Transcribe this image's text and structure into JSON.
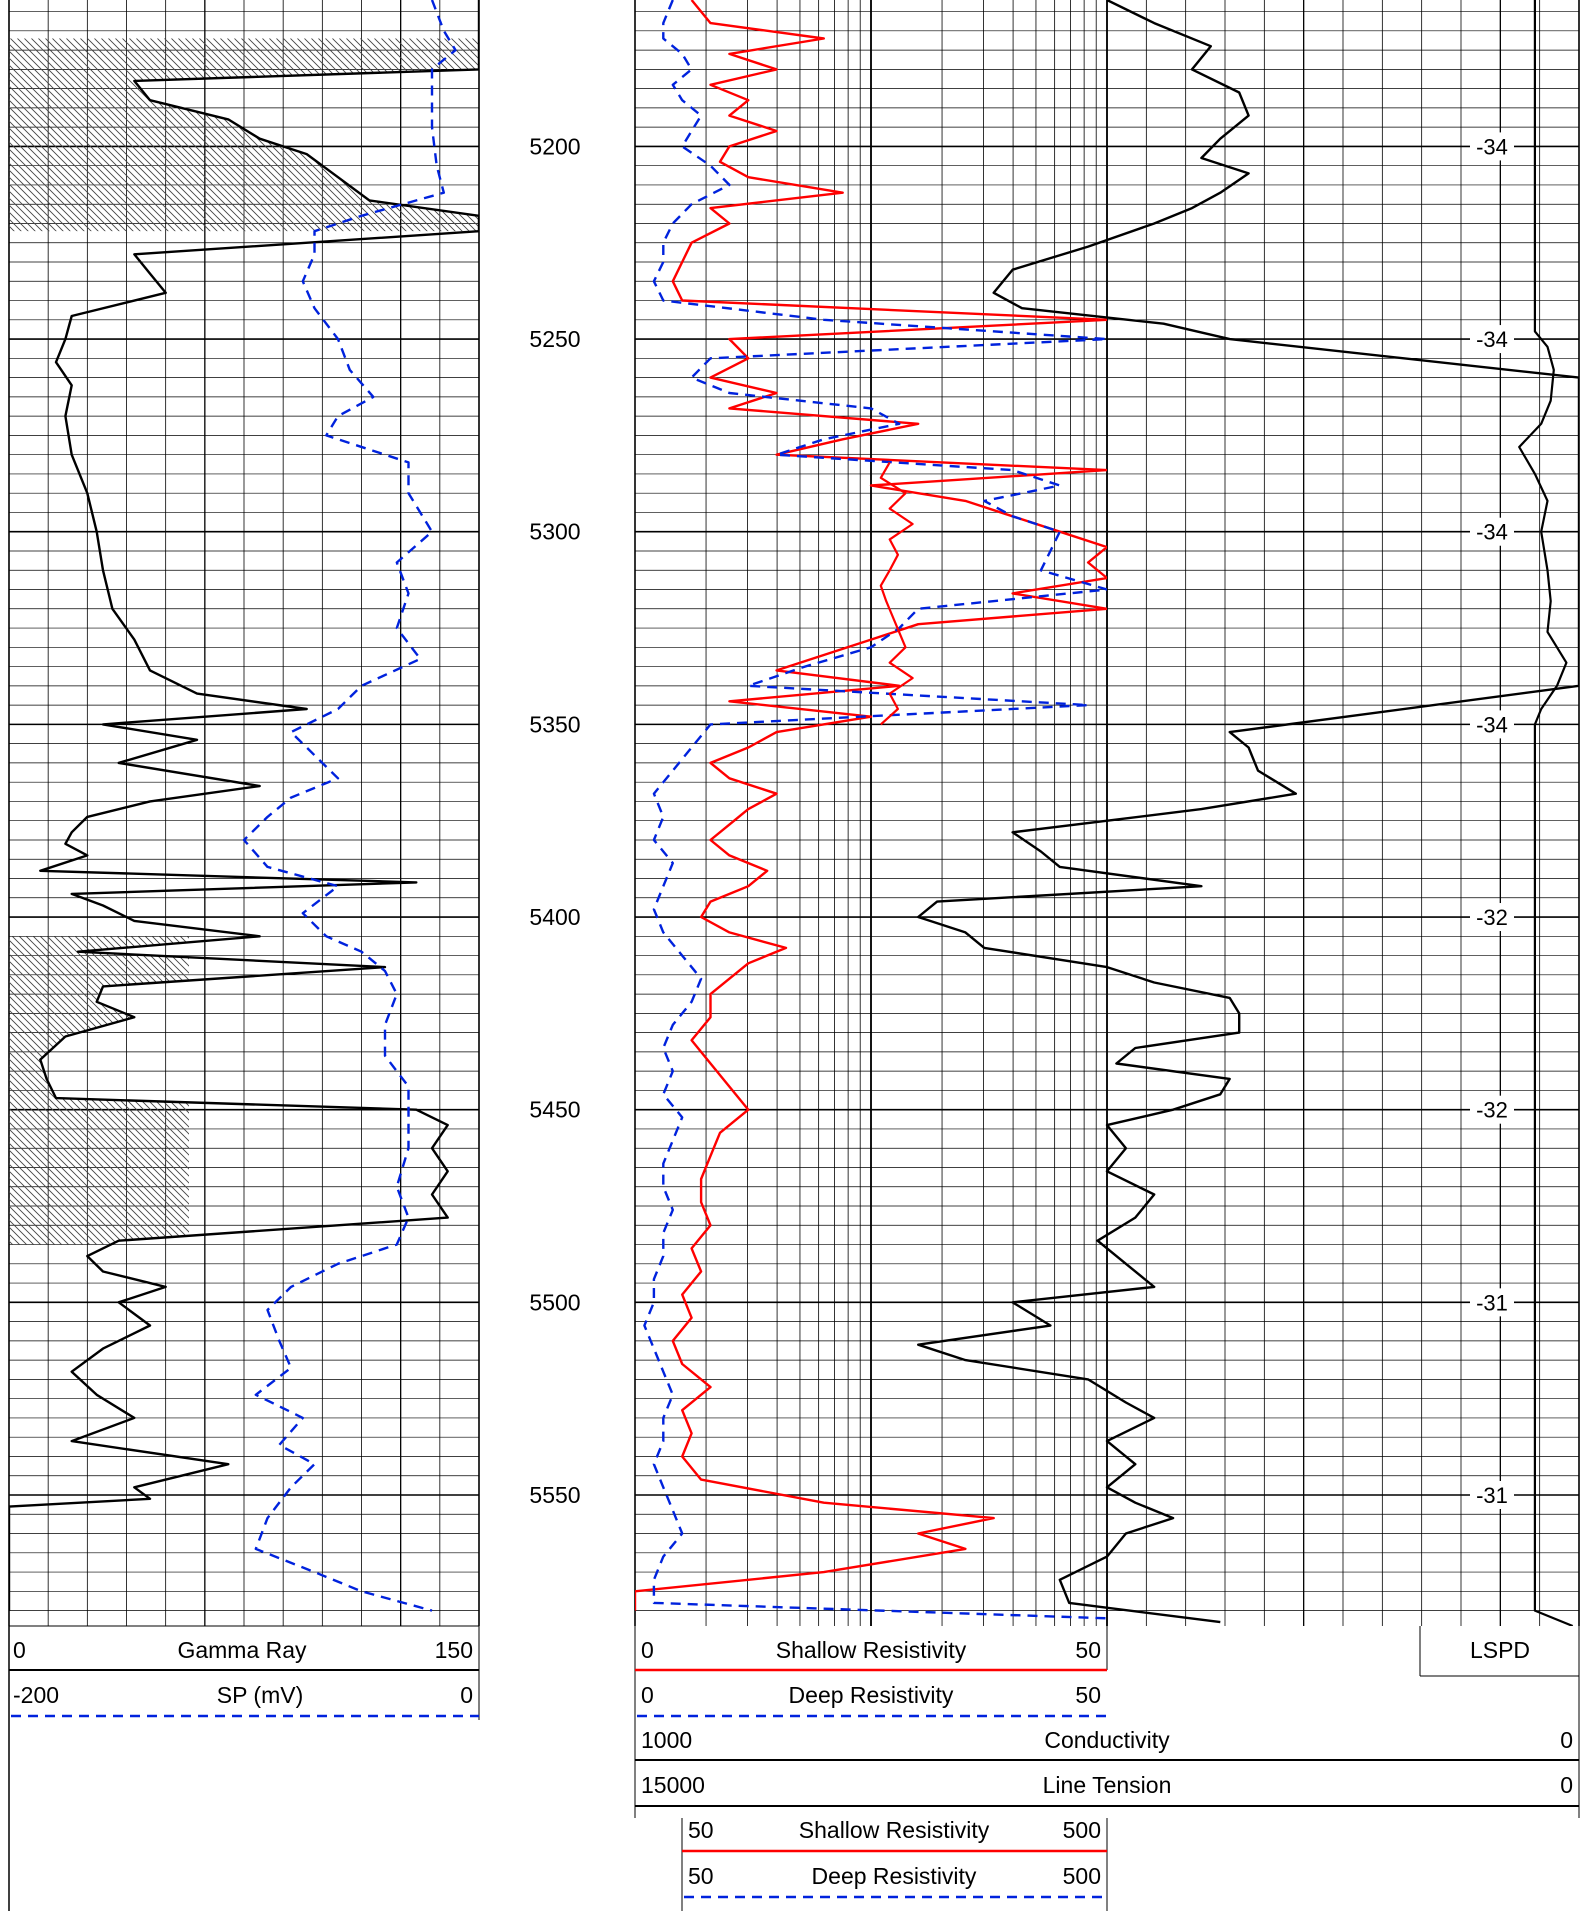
{
  "chart_data": {
    "type": "line",
    "title": "",
    "depth_axis": {
      "ticks": [
        5200,
        5250,
        5300,
        5350,
        5400,
        5450,
        5500,
        5550
      ],
      "range": [
        5162,
        5584
      ]
    },
    "lspd_labels": [
      {
        "depth": 5200,
        "text": "-34"
      },
      {
        "depth": 5250,
        "text": "-34"
      },
      {
        "depth": 5300,
        "text": "-34"
      },
      {
        "depth": 5350,
        "text": "-34"
      },
      {
        "depth": 5400,
        "text": "-32"
      },
      {
        "depth": 5450,
        "text": "-32"
      },
      {
        "depth": 5500,
        "text": "-31"
      },
      {
        "depth": 5550,
        "text": "-31"
      }
    ],
    "tracks": [
      {
        "name": "track-1",
        "scale": "linear",
        "grid": true
      },
      {
        "name": "track-2",
        "scale": "log",
        "grid": true,
        "decades": [
          [
            5,
            50
          ],
          [
            50,
            500
          ]
        ]
      },
      {
        "name": "track-3",
        "scale": "linear",
        "grid": true
      }
    ],
    "curves": {
      "gamma_ray": {
        "color": "#000000",
        "dash": "solid",
        "range": [
          0,
          150
        ],
        "depth": [
          5162,
          5170,
          5175,
          5180,
          5183,
          5188,
          5193,
          5198,
          5202,
          5208,
          5214,
          5218,
          5222,
          5228,
          5233,
          5238,
          5244,
          5250,
          5256,
          5262,
          5270,
          5280,
          5290,
          5300,
          5310,
          5320,
          5328,
          5336,
          5342,
          5346,
          5350,
          5354,
          5360,
          5366,
          5370,
          5374,
          5378,
          5381,
          5384,
          5388,
          5391,
          5394,
          5397,
          5401,
          5405,
          5409,
          5413,
          5418,
          5422,
          5426,
          5431,
          5437,
          5442,
          5447,
          5450,
          5454,
          5460,
          5466,
          5472,
          5478,
          5484,
          5488,
          5492,
          5496,
          5500,
          5506,
          5512,
          5518,
          5524,
          5530,
          5536,
          5542,
          5548,
          5551,
          5553,
          5560,
          5570,
          5580
        ],
        "value": [
          150,
          150,
          150,
          150,
          40,
          45,
          70,
          80,
          95,
          105,
          115,
          150,
          150,
          40,
          45,
          50,
          20,
          18,
          15,
          20,
          18,
          20,
          25,
          28,
          30,
          33,
          40,
          45,
          60,
          95,
          30,
          60,
          35,
          80,
          45,
          25,
          20,
          18,
          25,
          10,
          130,
          20,
          30,
          40,
          80,
          22,
          120,
          30,
          28,
          40,
          18,
          10,
          12,
          15,
          130,
          140,
          135,
          140,
          135,
          140,
          35,
          25,
          30,
          50,
          35,
          45,
          30,
          20,
          28,
          40,
          20,
          70,
          40,
          45,
          0,
          0,
          0,
          0
        ]
      },
      "sp": {
        "color": "#0022dd",
        "dash": "10 7",
        "range": [
          -200,
          0
        ],
        "depth": [
          5162,
          5170,
          5175,
          5180,
          5185,
          5195,
          5205,
          5212,
          5218,
          5222,
          5228,
          5235,
          5242,
          5250,
          5258,
          5265,
          5270,
          5275,
          5282,
          5290,
          5300,
          5308,
          5316,
          5325,
          5333,
          5340,
          5346,
          5352,
          5358,
          5364,
          5369,
          5374,
          5380,
          5387,
          5392,
          5399,
          5405,
          5409,
          5414,
          5420,
          5428,
          5436,
          5444,
          5452,
          5460,
          5470,
          5478,
          5485,
          5490,
          5496,
          5502,
          5510,
          5517,
          5524,
          5530,
          5537,
          5542,
          5548,
          5556,
          5564,
          5570,
          5575,
          5580
        ],
        "value": [
          -20,
          -15,
          -10,
          -20,
          -20,
          -20,
          -18,
          -15,
          -50,
          -70,
          -70,
          -75,
          -70,
          -60,
          -55,
          -45,
          -60,
          -65,
          -30,
          -30,
          -20,
          -35,
          -30,
          -35,
          -25,
          -50,
          -60,
          -80,
          -70,
          -60,
          -80,
          -90,
          -100,
          -90,
          -60,
          -75,
          -65,
          -50,
          -40,
          -35,
          -40,
          -40,
          -30,
          -30,
          -30,
          -35,
          -30,
          -35,
          -60,
          -80,
          -90,
          -85,
          -80,
          -95,
          -75,
          -85,
          -70,
          -80,
          -90,
          -95,
          -70,
          -50,
          -20
        ]
      },
      "shallow_resistivity": {
        "color": "#ff0000",
        "dash": "solid",
        "range": [
          0,
          50
        ],
        "depth": [
          5162,
          5168,
          5172,
          5176,
          5180,
          5184,
          5188,
          5192,
          5196,
          5200,
          5204,
          5208,
          5212,
          5216,
          5220,
          5225,
          5230,
          5235,
          5240,
          5245,
          5250,
          5255,
          5260,
          5264,
          5268,
          5272,
          5276,
          5280,
          5284,
          5288,
          5292,
          5296,
          5300,
          5304,
          5308,
          5312,
          5316,
          5320,
          5324,
          5328,
          5332,
          5336,
          5340,
          5344,
          5348,
          5352,
          5356,
          5360,
          5364,
          5368,
          5372,
          5376,
          5380,
          5384,
          5388,
          5392,
          5396,
          5400,
          5404,
          5408,
          5412,
          5416,
          5420,
          5426,
          5432,
          5438,
          5444,
          5450,
          5456,
          5462,
          5468,
          5474,
          5480,
          5486,
          5492,
          5498,
          5504,
          5510,
          5516,
          5522,
          5528,
          5534,
          5540,
          5546,
          5552,
          5556,
          5560,
          5564,
          5570,
          5575,
          5580
        ],
        "value": [
          6,
          8,
          20,
          10,
          15,
          8,
          12,
          10,
          15,
          10,
          9,
          12,
          22,
          8,
          10,
          6,
          5,
          4,
          5,
          50,
          10,
          12,
          8,
          15,
          10,
          30,
          22,
          15,
          50,
          25,
          35,
          40,
          45,
          50,
          48,
          50,
          40,
          50,
          30,
          25,
          20,
          15,
          28,
          10,
          25,
          15,
          12,
          8,
          10,
          15,
          12,
          10,
          8,
          10,
          14,
          12,
          8,
          7,
          10,
          16,
          12,
          10,
          8,
          8,
          6,
          8,
          10,
          12,
          9,
          8,
          7,
          7,
          8,
          6,
          7,
          5,
          6,
          4,
          5,
          8,
          5,
          6,
          5,
          7,
          20,
          38,
          30,
          35,
          20,
          0,
          0
        ]
      },
      "deep_resistivity": {
        "color": "#0022dd",
        "dash": "10 7",
        "range": [
          0,
          50
        ],
        "depth": [
          5162,
          5168,
          5172,
          5176,
          5180,
          5184,
          5188,
          5192,
          5196,
          5200,
          5205,
          5210,
          5215,
          5220,
          5225,
          5230,
          5235,
          5240,
          5245,
          5250,
          5255,
          5260,
          5264,
          5268,
          5272,
          5276,
          5280,
          5284,
          5288,
          5292,
          5296,
          5300,
          5305,
          5310,
          5315,
          5320,
          5325,
          5330,
          5335,
          5340,
          5345,
          5350,
          5356,
          5362,
          5368,
          5374,
          5380,
          5386,
          5392,
          5398,
          5404,
          5410,
          5416,
          5422,
          5428,
          5434,
          5440,
          5446,
          5452,
          5458,
          5464,
          5470,
          5476,
          5482,
          5488,
          5494,
          5500,
          5506,
          5512,
          5518,
          5524,
          5530,
          5536,
          5542,
          5548,
          5554,
          5560,
          5566,
          5572,
          5578,
          5582
        ],
        "value": [
          4,
          3,
          3,
          5,
          6,
          4,
          5,
          7,
          6,
          5,
          8,
          10,
          6,
          4,
          3,
          3,
          2,
          3,
          20,
          50,
          8,
          6,
          10,
          25,
          28,
          20,
          15,
          40,
          45,
          37,
          40,
          45,
          44,
          43,
          50,
          30,
          28,
          25,
          18,
          12,
          48,
          8,
          6,
          4,
          2,
          3,
          2,
          4,
          3,
          2,
          3,
          5,
          7,
          6,
          4,
          3,
          4,
          3,
          5,
          4,
          3,
          3,
          4,
          3,
          3,
          2,
          2,
          1,
          2,
          3,
          4,
          3,
          3,
          2,
          3,
          4,
          5,
          3,
          2,
          2,
          50
        ]
      },
      "conductivity": {
        "color": "#000000",
        "dash": "solid",
        "range": [
          1000,
          0
        ],
        "depth": [
          5162,
          5168,
          5174,
          5180,
          5186,
          5192,
          5198,
          5203,
          5207,
          5212,
          5216,
          5220,
          5226,
          5232,
          5238,
          5242,
          5246,
          5250,
          5260,
          5280,
          5300,
          5320,
          5340,
          5352,
          5356,
          5362,
          5368,
          5372,
          5378,
          5383,
          5387,
          5392,
          5396,
          5400,
          5404,
          5408,
          5413,
          5417,
          5421,
          5425,
          5430,
          5434,
          5438,
          5442,
          5446,
          5450,
          5454,
          5460,
          5466,
          5472,
          5478,
          5484,
          5490,
          5496,
          5500,
          5506,
          5511,
          5515,
          5520,
          5526,
          5530,
          5536,
          5542,
          5548,
          5552,
          5556,
          5560,
          5566,
          5572,
          5578,
          5583
        ],
        "value": [
          500,
          450,
          390,
          410,
          360,
          350,
          380,
          400,
          350,
          380,
          410,
          450,
          520,
          600,
          620,
          590,
          440,
          370,
          0,
          0,
          0,
          0,
          0,
          370,
          350,
          340,
          300,
          400,
          600,
          570,
          550,
          400,
          680,
          700,
          650,
          630,
          500,
          450,
          370,
          360,
          360,
          470,
          490,
          370,
          380,
          430,
          500,
          480,
          500,
          450,
          470,
          510,
          480,
          450,
          600,
          560,
          700,
          650,
          520,
          480,
          450,
          500,
          470,
          500,
          470,
          430,
          480,
          500,
          550,
          540,
          380
        ]
      },
      "line_tension": {
        "color": "#000000",
        "dash": "solid",
        "range": [
          15000,
          0
        ],
        "depth": [
          5162,
          5200,
          5240,
          5248,
          5252,
          5258,
          5266,
          5272,
          5278,
          5285,
          5292,
          5300,
          5310,
          5318,
          5326,
          5334,
          5340,
          5346,
          5350,
          5360,
          5380,
          5400,
          5440,
          5480,
          5520,
          5560,
          5580,
          5584
        ],
        "value": [
          700,
          700,
          700,
          700,
          500,
          400,
          450,
          600,
          950,
          700,
          500,
          600,
          500,
          450,
          500,
          200,
          350,
          600,
          700,
          700,
          700,
          700,
          700,
          700,
          700,
          700,
          700,
          100
        ]
      },
      "shallow_resistivity_backup": {
        "color": "#ff0000",
        "dash": "solid",
        "range": [
          50,
          500
        ],
        "depth": [
          5282,
          5286,
          5290,
          5294,
          5298,
          5302,
          5306,
          5310,
          5314,
          5318,
          5330,
          5334,
          5338,
          5342,
          5346,
          5350
        ],
        "value": [
          60,
          55,
          70,
          60,
          75,
          60,
          65,
          60,
          55,
          58,
          70,
          60,
          75,
          60,
          65,
          55
        ]
      }
    }
  },
  "legend": {
    "gamma_ray": {
      "min": "0",
      "label": "Gamma Ray",
      "max": "150"
    },
    "sp": {
      "min": "-200",
      "label": "SP (mV)",
      "max": "0"
    },
    "shallow_resistivity": {
      "min": "0",
      "label": "Shallow Resistivity",
      "max": "50"
    },
    "deep_resistivity": {
      "min": "0",
      "label": "Deep Resistivity",
      "max": "50"
    },
    "conductivity": {
      "min": "1000",
      "label": "Conductivity",
      "max": "0"
    },
    "line_tension": {
      "min": "15000",
      "label": "Line Tension",
      "max": "0"
    },
    "lspd": {
      "label": "LSPD"
    },
    "shallow_resistivity_backup": {
      "min": "50",
      "label": "Shallow Resistivity",
      "max": "500"
    },
    "deep_resistivity_backup": {
      "min": "50",
      "label": "Deep Resistivity",
      "max": "500"
    }
  }
}
